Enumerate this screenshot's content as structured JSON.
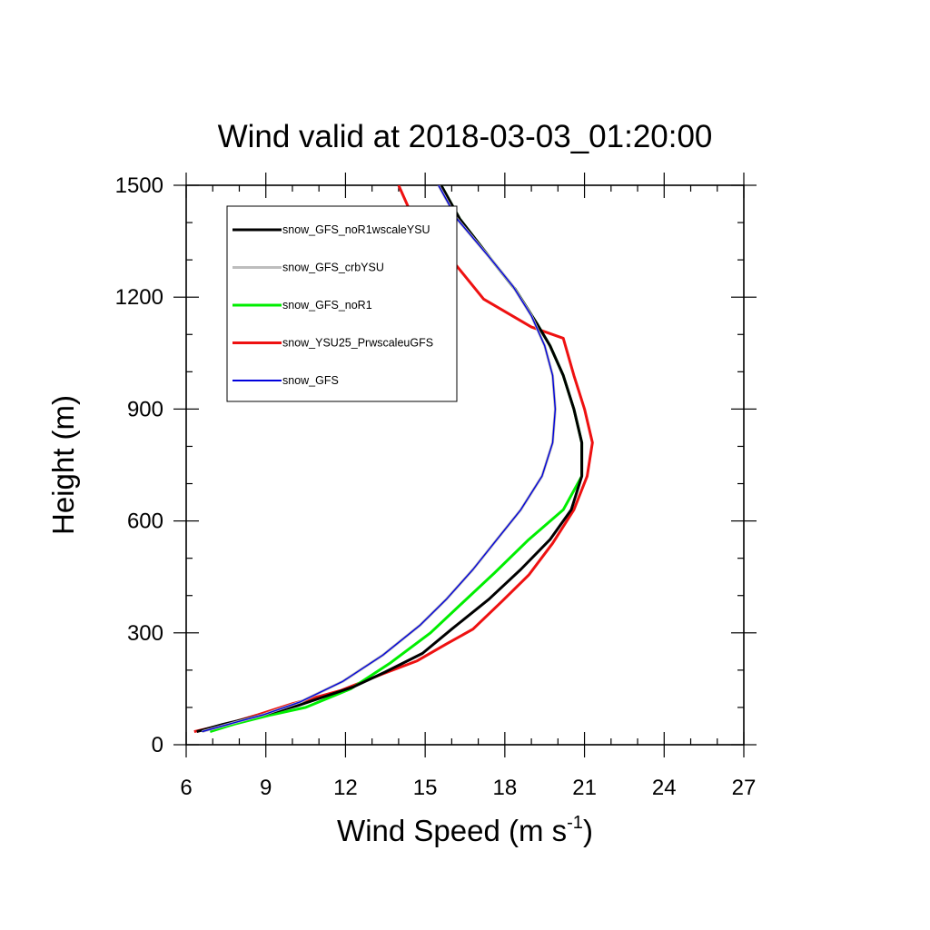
{
  "chart_data": {
    "type": "line",
    "title": "Wind valid at 2018-03-03_01:20:00",
    "xlabel": "Wind Speed (m s",
    "xlabel_superscript": "-1",
    "xlabel_suffix": ")",
    "ylabel": "Height (m)",
    "xlim": [
      6,
      27
    ],
    "ylim": [
      0,
      1500
    ],
    "xticks": [
      6,
      9,
      12,
      15,
      18,
      21,
      24,
      27
    ],
    "yticks": [
      0,
      300,
      600,
      900,
      1200,
      1500
    ],
    "legend_position": "top-left",
    "grid": false,
    "series": [
      {
        "name": "snow_GFS_noR1wscaleYSU",
        "color": "#000000",
        "points": [
          [
            6.4,
            35
          ],
          [
            7.4,
            55
          ],
          [
            8.9,
            80
          ],
          [
            10.2,
            105
          ],
          [
            12.3,
            155
          ],
          [
            13.5,
            195
          ],
          [
            14.9,
            245
          ],
          [
            16.0,
            310
          ],
          [
            17.4,
            390
          ],
          [
            18.6,
            470
          ],
          [
            19.7,
            550
          ],
          [
            20.5,
            630
          ],
          [
            20.9,
            720
          ],
          [
            20.9,
            810
          ],
          [
            20.6,
            900
          ],
          [
            20.2,
            990
          ],
          [
            19.7,
            1070
          ],
          [
            19.2,
            1130
          ],
          [
            18.4,
            1220
          ],
          [
            17.5,
            1300
          ],
          [
            16.3,
            1410
          ],
          [
            15.6,
            1500
          ]
        ]
      },
      {
        "name": "snow_GFS_crbYSU",
        "color": "#bdbdbd",
        "points": [
          [
            6.6,
            35
          ],
          [
            7.6,
            55
          ],
          [
            8.9,
            80
          ],
          [
            10.3,
            115
          ],
          [
            11.9,
            170
          ],
          [
            13.4,
            240
          ],
          [
            14.8,
            320
          ],
          [
            15.8,
            390
          ],
          [
            16.8,
            470
          ],
          [
            17.7,
            550
          ],
          [
            18.6,
            630
          ],
          [
            19.4,
            720
          ],
          [
            19.8,
            810
          ],
          [
            19.9,
            900
          ],
          [
            19.8,
            990
          ],
          [
            19.5,
            1070
          ],
          [
            19.0,
            1150
          ],
          [
            18.3,
            1230
          ],
          [
            17.5,
            1300
          ],
          [
            16.2,
            1410
          ],
          [
            15.5,
            1500
          ]
        ]
      },
      {
        "name": "snow_GFS_noR1",
        "color": "#00ee00",
        "points": [
          [
            6.9,
            35
          ],
          [
            7.8,
            55
          ],
          [
            9.2,
            80
          ],
          [
            10.5,
            100
          ],
          [
            12.2,
            150
          ],
          [
            13.7,
            220
          ],
          [
            15.2,
            300
          ],
          [
            16.4,
            380
          ],
          [
            17.6,
            460
          ],
          [
            18.9,
            550
          ],
          [
            20.2,
            630
          ],
          [
            20.9,
            720
          ],
          [
            20.9,
            810
          ],
          [
            20.6,
            900
          ],
          [
            20.2,
            990
          ],
          [
            19.7,
            1070
          ],
          [
            19.2,
            1130
          ],
          [
            18.4,
            1220
          ],
          [
            17.5,
            1300
          ],
          [
            16.3,
            1410
          ],
          [
            15.6,
            1500
          ]
        ]
      },
      {
        "name": "snow_YSU25_PrwscaleuGFS",
        "color": "#ee1111",
        "points": [
          [
            6.3,
            35
          ],
          [
            7.5,
            55
          ],
          [
            8.7,
            80
          ],
          [
            10.0,
            110
          ],
          [
            11.8,
            145
          ],
          [
            13.4,
            190
          ],
          [
            14.7,
            225
          ],
          [
            15.8,
            270
          ],
          [
            16.8,
            310
          ],
          [
            17.9,
            385
          ],
          [
            18.9,
            455
          ],
          [
            19.8,
            540
          ],
          [
            20.6,
            630
          ],
          [
            21.1,
            720
          ],
          [
            21.3,
            810
          ],
          [
            21.0,
            900
          ],
          [
            20.6,
            990
          ],
          [
            20.2,
            1090
          ],
          [
            19.0,
            1120
          ],
          [
            17.2,
            1195
          ],
          [
            16.0,
            1300
          ],
          [
            14.5,
            1420
          ],
          [
            14.0,
            1500
          ]
        ]
      },
      {
        "name": "snow_GFS",
        "color": "#0000dd",
        "points": [
          [
            6.6,
            35
          ],
          [
            7.6,
            55
          ],
          [
            8.9,
            80
          ],
          [
            10.3,
            115
          ],
          [
            11.9,
            170
          ],
          [
            13.4,
            240
          ],
          [
            14.8,
            320
          ],
          [
            15.8,
            390
          ],
          [
            16.8,
            470
          ],
          [
            17.7,
            550
          ],
          [
            18.6,
            630
          ],
          [
            19.4,
            720
          ],
          [
            19.8,
            810
          ],
          [
            19.9,
            900
          ],
          [
            19.8,
            990
          ],
          [
            19.5,
            1070
          ],
          [
            19.0,
            1150
          ],
          [
            18.3,
            1230
          ],
          [
            17.5,
            1300
          ],
          [
            16.2,
            1410
          ],
          [
            15.5,
            1500
          ]
        ]
      }
    ]
  }
}
